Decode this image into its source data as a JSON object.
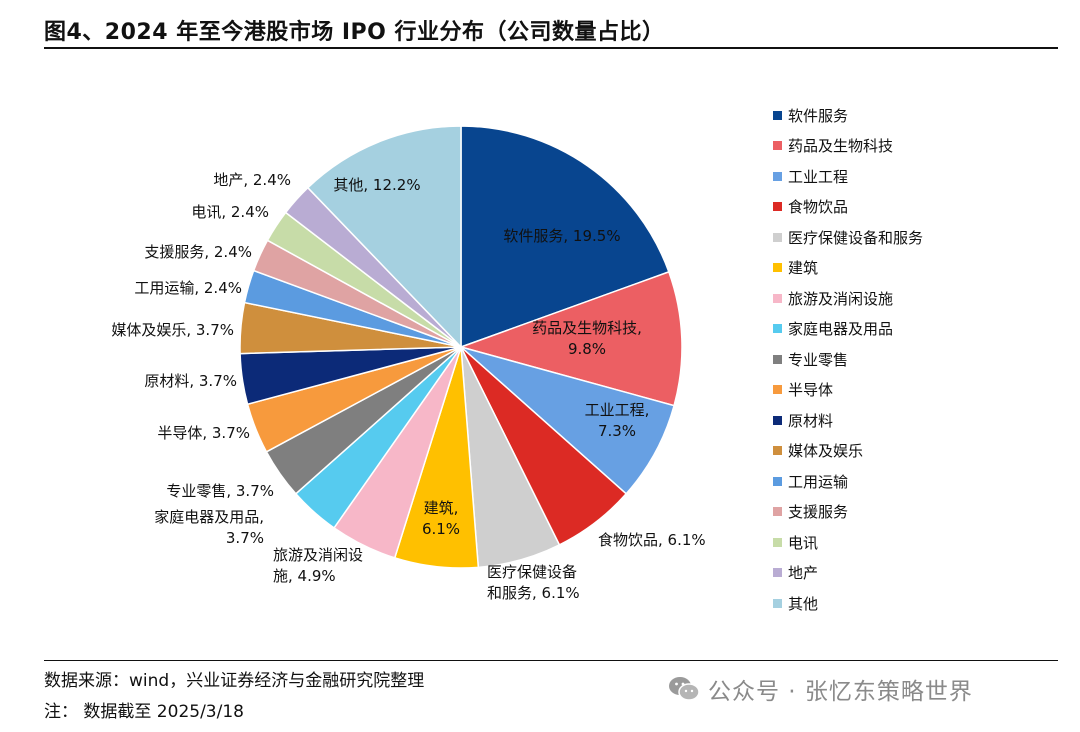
{
  "header": {
    "title": "图4、2024 年至今港股市场 IPO 行业分布（公司数量占比）"
  },
  "footer": {
    "source": "数据来源：wind，兴业证券经济与金融研究院整理",
    "note": "注：  数据截至 2025/3/18"
  },
  "watermark": {
    "text": "公众号 · 张忆东策略世界"
  },
  "chart_data": {
    "type": "pie",
    "start": "12 o'clock, clockwise",
    "legend_position": "right",
    "series": [
      {
        "name": "软件服务",
        "value": 19.5,
        "color": "#08458f",
        "slice_label": "软件服务, 19.5%"
      },
      {
        "name": "药品及生物科技",
        "value": 9.8,
        "color": "#ec5f63",
        "slice_label": "药品及生物科技,\n9.8%"
      },
      {
        "name": "工业工程",
        "value": 7.3,
        "color": "#67a0e3",
        "slice_label": "工业工程,\n7.3%"
      },
      {
        "name": "食物饮品",
        "value": 6.1,
        "color": "#dc2a24",
        "slice_label": "食物饮品, 6.1%"
      },
      {
        "name": "医疗保健设备和服务",
        "value": 6.1,
        "color": "#cfcfcf",
        "slice_label": "医疗保健设备\n和服务, 6.1%"
      },
      {
        "name": "建筑",
        "value": 6.1,
        "color": "#ffc000",
        "slice_label": "建筑,\n6.1%"
      },
      {
        "name": "旅游及消闲设施",
        "value": 4.9,
        "color": "#f7b7c8",
        "slice_label": "旅游及消闲设\n施, 4.9%"
      },
      {
        "name": "家庭电器及用品",
        "value": 3.7,
        "color": "#56cbef",
        "slice_label": "家庭电器及用品,\n3.7%"
      },
      {
        "name": "专业零售",
        "value": 3.7,
        "color": "#7f7f7f",
        "slice_label": "专业零售, 3.7%"
      },
      {
        "name": "半导体",
        "value": 3.7,
        "color": "#f79a3d",
        "slice_label": "半导体, 3.7%"
      },
      {
        "name": "原材料",
        "value": 3.7,
        "color": "#0c2a78",
        "slice_label": "原材料, 3.7%"
      },
      {
        "name": "媒体及娱乐",
        "value": 3.7,
        "color": "#cf8f3d",
        "slice_label": "媒体及娱乐, 3.7%"
      },
      {
        "name": "工用运输",
        "value": 2.4,
        "color": "#5b9be0",
        "slice_label": "工用运输, 2.4%"
      },
      {
        "name": "支援服务",
        "value": 2.4,
        "color": "#dfa3a3",
        "slice_label": "支援服务, 2.4%"
      },
      {
        "name": "电讯",
        "value": 2.4,
        "color": "#c7dca8",
        "slice_label": "电讯, 2.4%"
      },
      {
        "name": "地产",
        "value": 2.4,
        "color": "#b9acd3",
        "slice_label": "地产, 2.4%"
      },
      {
        "name": "其他",
        "value": 12.2,
        "color": "#a5d0e0",
        "slice_label": "其他, 12.2%"
      }
    ]
  }
}
